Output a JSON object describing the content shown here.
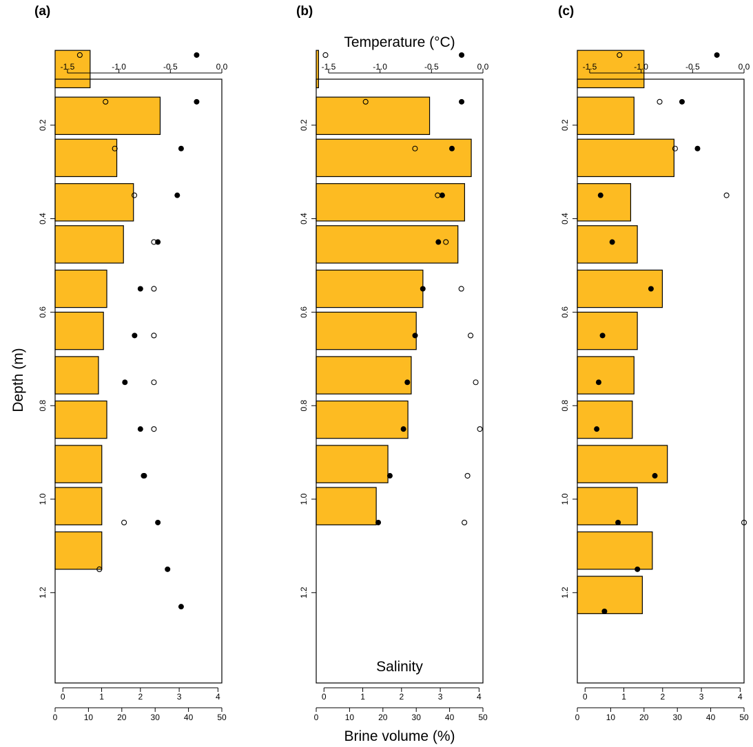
{
  "labels": {
    "temperature_title": "Temperature (°C)",
    "brine_title": "Brine volume (%)",
    "depth_title": "Depth (m)",
    "salinity_label": "Salinity"
  },
  "colors": {
    "bar_fill": "#FDBB22",
    "bar_edge": "#000000",
    "marker": "#000000"
  },
  "chart_data": [
    {
      "panel": "(a)",
      "type": "bar",
      "orientation": "horizontal",
      "xlabel_top": "",
      "xlabel_bottom": "",
      "ylabel": "Depth (m)",
      "ylim": [
        1.3,
        0.0
      ],
      "y_ticks": [
        "0.2",
        "0.4",
        "0.6",
        "0.8",
        "1.0",
        "1.2"
      ],
      "temperature_axis": {
        "lim": [
          -1.62,
          0.0
        ],
        "ticks": [
          "-1.5",
          "-1.0",
          "-0.5",
          "0.0"
        ]
      },
      "brine_axis": {
        "lim": [
          0,
          50
        ],
        "ticks": [
          "0",
          "10",
          "20",
          "30",
          "40",
          "50"
        ]
      },
      "salinity_axis": {
        "lim": [
          -0.2,
          4.1
        ],
        "ticks": [
          "0",
          "1",
          "2",
          "3",
          "4"
        ]
      },
      "brine_volume": [
        {
          "top": 0.04,
          "bottom": 0.12,
          "value": 10.5
        },
        {
          "top": 0.14,
          "bottom": 0.22,
          "value": 31.5
        },
        {
          "top": 0.23,
          "bottom": 0.31,
          "value": 18.5
        },
        {
          "top": 0.325,
          "bottom": 0.405,
          "value": 23.5
        },
        {
          "top": 0.415,
          "bottom": 0.495,
          "value": 20.5
        },
        {
          "top": 0.51,
          "bottom": 0.59,
          "value": 15.5
        },
        {
          "top": 0.6,
          "bottom": 0.68,
          "value": 14.5
        },
        {
          "top": 0.695,
          "bottom": 0.775,
          "value": 13.0
        },
        {
          "top": 0.79,
          "bottom": 0.87,
          "value": 15.5
        },
        {
          "top": 0.885,
          "bottom": 0.965,
          "value": 14.0
        },
        {
          "top": 0.975,
          "bottom": 1.055,
          "value": 14.0
        },
        {
          "top": 1.07,
          "bottom": 1.15,
          "value": 14.0
        }
      ],
      "salinity": [
        {
          "depth": 0.05,
          "value": 3.45
        },
        {
          "depth": 0.15,
          "value": 3.45
        },
        {
          "depth": 0.25,
          "value": 3.05
        },
        {
          "depth": 0.35,
          "value": 2.95
        },
        {
          "depth": 0.45,
          "value": 2.45
        },
        {
          "depth": 0.55,
          "value": 2.0
        },
        {
          "depth": 0.65,
          "value": 1.85
        },
        {
          "depth": 0.75,
          "value": 1.6
        },
        {
          "depth": 0.85,
          "value": 2.0
        },
        {
          "depth": 0.95,
          "value": 2.1
        },
        {
          "depth": 1.05,
          "value": 2.45
        },
        {
          "depth": 1.15,
          "value": 2.7
        },
        {
          "depth": 1.23,
          "value": 3.05
        }
      ],
      "temperature": [
        {
          "depth": 0.05,
          "value": -1.38
        },
        {
          "depth": 0.15,
          "value": -1.13
        },
        {
          "depth": 0.25,
          "value": -1.04
        },
        {
          "depth": 0.35,
          "value": -0.85
        },
        {
          "depth": 0.45,
          "value": -0.66
        },
        {
          "depth": 0.55,
          "value": -0.66
        },
        {
          "depth": 0.65,
          "value": -0.66
        },
        {
          "depth": 0.75,
          "value": -0.66
        },
        {
          "depth": 0.85,
          "value": -0.66
        },
        {
          "depth": 0.95,
          "value": -0.76
        },
        {
          "depth": 1.05,
          "value": -0.95
        },
        {
          "depth": 1.15,
          "value": -1.19
        }
      ]
    },
    {
      "panel": "(b)",
      "type": "bar",
      "orientation": "horizontal",
      "xlabel_top": "Temperature (°C)",
      "xlabel_bottom": "Brine volume (%)",
      "ylabel": "",
      "ylim": [
        1.3,
        0.0
      ],
      "y_ticks": [
        "0.2",
        "0.4",
        "0.6",
        "0.8",
        "1.0",
        "1.2"
      ],
      "temperature_axis": {
        "lim": [
          -1.62,
          0.0
        ],
        "ticks": [
          "-1.5",
          "-1.0",
          "-0.5",
          "0.0"
        ]
      },
      "brine_axis": {
        "lim": [
          0,
          50
        ],
        "ticks": [
          "0",
          "10",
          "20",
          "30",
          "40",
          "50"
        ]
      },
      "salinity_axis": {
        "lim": [
          -0.2,
          4.1
        ],
        "ticks": [
          "0",
          "1",
          "2",
          "3",
          "4"
        ]
      },
      "brine_volume": [
        {
          "top": 0.04,
          "bottom": 0.12,
          "value": 0.7
        },
        {
          "top": 0.14,
          "bottom": 0.22,
          "value": 34.0
        },
        {
          "top": 0.23,
          "bottom": 0.31,
          "value": 46.5
        },
        {
          "top": 0.325,
          "bottom": 0.405,
          "value": 44.5
        },
        {
          "top": 0.415,
          "bottom": 0.495,
          "value": 42.5
        },
        {
          "top": 0.51,
          "bottom": 0.59,
          "value": 32.0
        },
        {
          "top": 0.6,
          "bottom": 0.68,
          "value": 30.0
        },
        {
          "top": 0.695,
          "bottom": 0.775,
          "value": 28.5
        },
        {
          "top": 0.79,
          "bottom": 0.87,
          "value": 27.5
        },
        {
          "top": 0.885,
          "bottom": 0.965,
          "value": 21.5
        },
        {
          "top": 0.975,
          "bottom": 1.055,
          "value": 18.0
        }
      ],
      "salinity": [
        {
          "depth": 0.05,
          "value": 3.55
        },
        {
          "depth": 0.15,
          "value": 3.55
        },
        {
          "depth": 0.25,
          "value": 3.3
        },
        {
          "depth": 0.35,
          "value": 3.05
        },
        {
          "depth": 0.45,
          "value": 2.95
        },
        {
          "depth": 0.55,
          "value": 2.55
        },
        {
          "depth": 0.65,
          "value": 2.35
        },
        {
          "depth": 0.75,
          "value": 2.15
        },
        {
          "depth": 0.85,
          "value": 2.05
        },
        {
          "depth": 0.95,
          "value": 1.7
        },
        {
          "depth": 1.05,
          "value": 1.4
        }
      ],
      "temperature": [
        {
          "depth": 0.05,
          "value": -1.53
        },
        {
          "depth": 0.15,
          "value": -1.14
        },
        {
          "depth": 0.25,
          "value": -0.66
        },
        {
          "depth": 0.35,
          "value": -0.44
        },
        {
          "depth": 0.45,
          "value": -0.36
        },
        {
          "depth": 0.55,
          "value": -0.21
        },
        {
          "depth": 0.65,
          "value": -0.12
        },
        {
          "depth": 0.75,
          "value": -0.07
        },
        {
          "depth": 0.85,
          "value": -0.03
        },
        {
          "depth": 0.95,
          "value": -0.15
        },
        {
          "depth": 1.05,
          "value": -0.18
        }
      ]
    },
    {
      "panel": "(c)",
      "type": "bar",
      "orientation": "horizontal",
      "xlabel_top": "",
      "xlabel_bottom": "",
      "ylabel": "",
      "ylim": [
        1.3,
        0.0
      ],
      "y_ticks": [
        "0.2",
        "0.4",
        "0.6",
        "0.8",
        "1.0",
        "1.2"
      ],
      "temperature_axis": {
        "lim": [
          -1.62,
          0.0
        ],
        "ticks": [
          "-1.5",
          "-1.0",
          "-0.5",
          "0.0"
        ]
      },
      "brine_axis": {
        "lim": [
          0,
          50
        ],
        "ticks": [
          "0",
          "10",
          "20",
          "30",
          "40",
          "50"
        ]
      },
      "salinity_axis": {
        "lim": [
          -0.2,
          4.1
        ],
        "ticks": [
          "0",
          "1",
          "2",
          "3",
          "4"
        ]
      },
      "brine_volume": [
        {
          "top": 0.04,
          "bottom": 0.12,
          "value": 20.0
        },
        {
          "top": 0.14,
          "bottom": 0.22,
          "value": 17.0
        },
        {
          "top": 0.23,
          "bottom": 0.31,
          "value": 29.0
        },
        {
          "top": 0.325,
          "bottom": 0.405,
          "value": 16.0
        },
        {
          "top": 0.415,
          "bottom": 0.495,
          "value": 18.0
        },
        {
          "top": 0.51,
          "bottom": 0.59,
          "value": 25.5
        },
        {
          "top": 0.6,
          "bottom": 0.68,
          "value": 18.0
        },
        {
          "top": 0.695,
          "bottom": 0.775,
          "value": 17.0
        },
        {
          "top": 0.79,
          "bottom": 0.87,
          "value": 16.5
        },
        {
          "top": 0.885,
          "bottom": 0.965,
          "value": 27.0
        },
        {
          "top": 0.975,
          "bottom": 1.055,
          "value": 18.0
        },
        {
          "top": 1.07,
          "bottom": 1.15,
          "value": 22.5
        },
        {
          "top": 1.165,
          "bottom": 1.245,
          "value": 19.5
        }
      ],
      "salinity": [
        {
          "depth": 0.05,
          "value": 3.4
        },
        {
          "depth": 0.15,
          "value": 2.5
        },
        {
          "depth": 0.25,
          "value": 2.9
        },
        {
          "depth": 0.35,
          "value": 0.4
        },
        {
          "depth": 0.45,
          "value": 0.7
        },
        {
          "depth": 0.55,
          "value": 1.7
        },
        {
          "depth": 0.65,
          "value": 0.45
        },
        {
          "depth": 0.75,
          "value": 0.35
        },
        {
          "depth": 0.85,
          "value": 0.3
        },
        {
          "depth": 0.95,
          "value": 1.8
        },
        {
          "depth": 1.05,
          "value": 0.85
        },
        {
          "depth": 1.15,
          "value": 1.35
        },
        {
          "depth": 1.24,
          "value": 0.5
        }
      ],
      "temperature": [
        {
          "depth": 0.05,
          "value": -1.21
        },
        {
          "depth": 0.15,
          "value": -0.82
        },
        {
          "depth": 0.25,
          "value": -0.67
        },
        {
          "depth": 0.35,
          "value": -0.17
        },
        {
          "depth": 1.05,
          "value": 0.0
        }
      ]
    }
  ]
}
